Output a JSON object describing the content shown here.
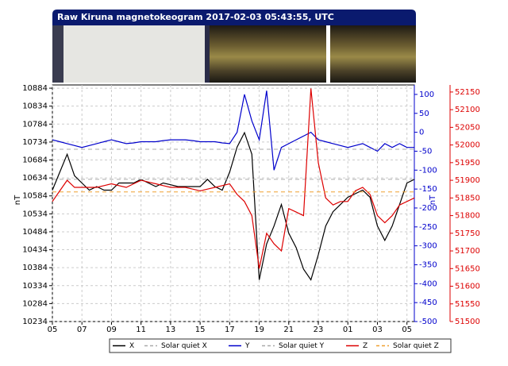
{
  "chart_data": {
    "type": "line",
    "title": "Raw Kiruna magnetokeogram 2017-02-03 05:43:55, UTC",
    "axis_labels": {
      "y": "nT",
      "y2": "nT"
    },
    "x": [
      0,
      0.5,
      1,
      1.5,
      2,
      2.5,
      3,
      3.5,
      4,
      4.5,
      5,
      5.5,
      6,
      6.5,
      7,
      7.5,
      8,
      8.5,
      9,
      9.5,
      10,
      10.5,
      11,
      11.5,
      12,
      12.5,
      13,
      13.5,
      14,
      14.5,
      15,
      15.5,
      16,
      16.5,
      17,
      17.5,
      18,
      18.5,
      19,
      19.5,
      20,
      20.5,
      21,
      21.5,
      22,
      22.5,
      23,
      23.5,
      24,
      24.5
    ],
    "xlim": [
      0,
      24.5
    ],
    "xticks": [
      {
        "value": 0,
        "label": "05"
      },
      {
        "value": 2,
        "label": "07"
      },
      {
        "value": 4,
        "label": "09"
      },
      {
        "value": 6,
        "label": "11"
      },
      {
        "value": 8,
        "label": "13"
      },
      {
        "value": 10,
        "label": "15"
      },
      {
        "value": 12,
        "label": "17"
      },
      {
        "value": 14,
        "label": "19"
      },
      {
        "value": 16,
        "label": "21"
      },
      {
        "value": 18,
        "label": "23"
      },
      {
        "value": 20,
        "label": "01"
      },
      {
        "value": 22,
        "label": "03"
      },
      {
        "value": 24,
        "label": "05"
      }
    ],
    "ylim": [
      10234,
      10893
    ],
    "yticks": [
      10234,
      10284,
      10334,
      10384,
      10434,
      10484,
      10534,
      10584,
      10634,
      10684,
      10734,
      10784,
      10834,
      10884
    ],
    "y2lim": [
      -500,
      125
    ],
    "y2ticks": [
      -500,
      -450,
      -400,
      -350,
      -300,
      -250,
      -200,
      -150,
      -100,
      -50,
      0,
      50,
      100
    ],
    "y3lim": [
      51500,
      52170
    ],
    "y3ticks": [
      51500,
      51550,
      51600,
      51650,
      51700,
      51750,
      51800,
      51850,
      51900,
      51950,
      52000,
      52050,
      52100,
      52150
    ],
    "grid": true,
    "legend": "bottom",
    "series": [
      {
        "name": "X",
        "color": "#000000",
        "axis": "y",
        "values": [
          10600,
          10650,
          10700,
          10640,
          10620,
          10600,
          10610,
          10600,
          10600,
          10620,
          10620,
          10620,
          10630,
          10620,
          10610,
          10620,
          10615,
          10610,
          10610,
          10610,
          10610,
          10630,
          10610,
          10600,
          10650,
          10720,
          10760,
          10700,
          10350,
          10450,
          10500,
          10560,
          10480,
          10440,
          10380,
          10350,
          10420,
          10500,
          10540,
          10560,
          10580,
          10590,
          10600,
          10580,
          10500,
          10460,
          10500,
          10560,
          10620,
          10630
        ]
      },
      {
        "name": "Solar quiet X",
        "color": "#aaaaaa",
        "axis": "y",
        "dashed": true,
        "value": 10630
      },
      {
        "name": "Y",
        "color": "#0000cc",
        "axis": "y2",
        "values": [
          -20,
          -25,
          -30,
          -35,
          -40,
          -35,
          -30,
          -25,
          -20,
          -25,
          -30,
          -28,
          -25,
          -25,
          -25,
          -22,
          -20,
          -20,
          -20,
          -22,
          -25,
          -25,
          -25,
          -28,
          -30,
          0,
          100,
          30,
          -20,
          110,
          -100,
          -40,
          -30,
          -20,
          -10,
          0,
          -20,
          -25,
          -30,
          -35,
          -40,
          -35,
          -30,
          -40,
          -50,
          -30,
          -40,
          -30,
          -40,
          -40
        ]
      },
      {
        "name": "Solar quiet Y",
        "color": "#aaaaaa",
        "axis": "y2",
        "dashed": true,
        "value": -45
      },
      {
        "name": "Z",
        "color": "#dd0000",
        "axis": "y3",
        "values": [
          51840,
          51870,
          51900,
          51880,
          51880,
          51880,
          51880,
          51885,
          51890,
          51885,
          51880,
          51890,
          51900,
          51895,
          51890,
          51885,
          51880,
          51880,
          51880,
          51875,
          51870,
          51875,
          51880,
          51885,
          51890,
          51860,
          51840,
          51800,
          51650,
          51750,
          51720,
          51700,
          51820,
          51810,
          51800,
          52160,
          51950,
          51850,
          51830,
          51840,
          51840,
          51870,
          51880,
          51860,
          51800,
          51780,
          51800,
          51830,
          51840,
          51850
        ]
      },
      {
        "name": "Solar quiet Z",
        "color": "#f0a030",
        "axis": "y3",
        "dashed": true,
        "value": 51867
      }
    ]
  }
}
